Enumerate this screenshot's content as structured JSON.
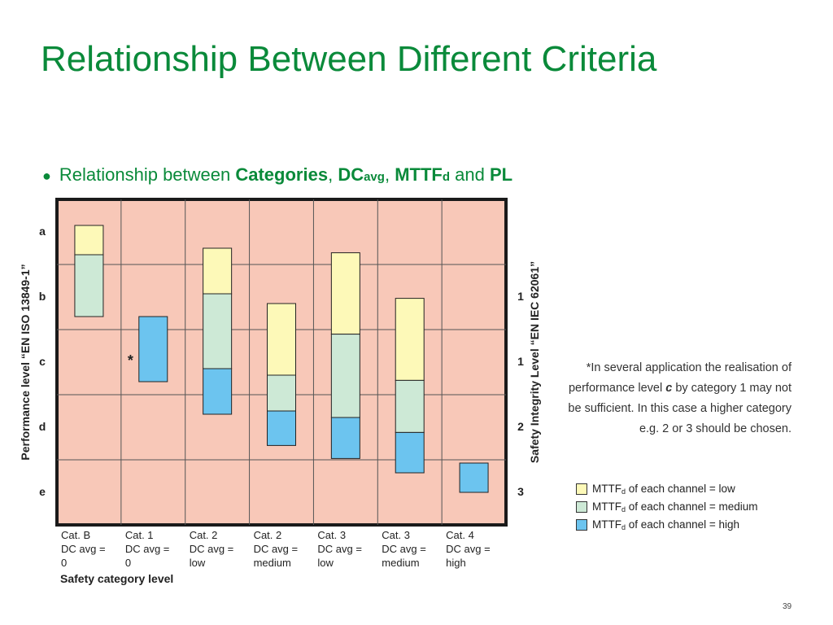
{
  "slide": {
    "title": "Relationship Between Different Criteria",
    "page_number": "39"
  },
  "bullet": {
    "marker": "●",
    "prefix": "Relationship between ",
    "categories": "Categories",
    "sep1": ", ",
    "dc": "DC",
    "dc_sub": "avg",
    "sep2": ", ",
    "mttf": "MTTF",
    "mttf_sub": "d",
    "and": " and ",
    "pl": "PL"
  },
  "note": {
    "before": "*In several application the realisation of performance level ",
    "emph": "c",
    "after": " by category 1 may not be sufficient. In this case a higher category e.g. 2 or 3 should be chosen."
  },
  "legend": {
    "items": [
      {
        "label_pre": "MTTF",
        "label_sub": "d",
        "label_post": " of each channel = low",
        "color": "#fdf9b8"
      },
      {
        "label_pre": "MTTF",
        "label_sub": "d",
        "label_post": " of each channel = medium",
        "color": "#cde9d6"
      },
      {
        "label_pre": "MTTF",
        "label_sub": "d",
        "label_post": " of each channel = high",
        "color": "#6cc4ef"
      }
    ]
  },
  "chart_data": {
    "type": "bar",
    "background_color": "#f8c8b8",
    "ylabel_left": "Performance level “EN ISO 13849-1”",
    "ylabel_right": "Safety Integrity Level “EN IEC 62061”",
    "xlabel": "Safety category level",
    "pl_levels": [
      "a",
      "b",
      "c",
      "d",
      "e"
    ],
    "sil_labels": [
      "1",
      "1",
      "2",
      "3"
    ],
    "categories": [
      {
        "lines": [
          "Cat. B",
          "DC avg =",
          "0"
        ]
      },
      {
        "lines": [
          "Cat. 1",
          "DC avg =",
          "0"
        ]
      },
      {
        "lines": [
          "Cat. 2",
          "DC avg =",
          "low"
        ]
      },
      {
        "lines": [
          "Cat. 2",
          "DC avg =",
          "medium"
        ]
      },
      {
        "lines": [
          "Cat. 3",
          "DC avg =",
          "low"
        ]
      },
      {
        "lines": [
          "Cat. 3",
          "DC avg =",
          "medium"
        ]
      },
      {
        "lines": [
          "Cat. 4",
          "DC avg =",
          "high"
        ]
      }
    ],
    "asterisk": "*",
    "asterisk_category": 1,
    "level_scale_note": "Segment bounds in PL units: 0 = top of level a, 1 = boundary a/b, 2 = b/c, 3 = c/d, 4 = d/e, 5 = bottom of e",
    "series_colors": {
      "low": "#fdf9b8",
      "medium": "#cde9d6",
      "high": "#6cc4ef"
    },
    "bars": [
      {
        "category": 0,
        "segments": [
          {
            "mttf": "low",
            "from": 0.4,
            "to": 0.85
          },
          {
            "mttf": "medium",
            "from": 0.85,
            "to": 1.8
          }
        ]
      },
      {
        "category": 1,
        "segments": [
          {
            "mttf": "high",
            "from": 1.8,
            "to": 2.8
          }
        ]
      },
      {
        "category": 2,
        "segments": [
          {
            "mttf": "low",
            "from": 0.75,
            "to": 1.45
          },
          {
            "mttf": "medium",
            "from": 1.45,
            "to": 2.6
          },
          {
            "mttf": "high",
            "from": 2.6,
            "to": 3.3
          }
        ]
      },
      {
        "category": 3,
        "segments": [
          {
            "mttf": "low",
            "from": 1.6,
            "to": 2.7
          },
          {
            "mttf": "medium",
            "from": 2.7,
            "to": 3.25
          },
          {
            "mttf": "high",
            "from": 3.25,
            "to": 3.78
          }
        ]
      },
      {
        "category": 4,
        "segments": [
          {
            "mttf": "low",
            "from": 0.82,
            "to": 2.07
          },
          {
            "mttf": "medium",
            "from": 2.07,
            "to": 3.35
          },
          {
            "mttf": "high",
            "from": 3.35,
            "to": 3.98
          }
        ]
      },
      {
        "category": 5,
        "segments": [
          {
            "mttf": "low",
            "from": 1.52,
            "to": 2.78
          },
          {
            "mttf": "medium",
            "from": 2.78,
            "to": 3.58
          },
          {
            "mttf": "high",
            "from": 3.58,
            "to": 4.2
          }
        ]
      },
      {
        "category": 6,
        "segments": [
          {
            "mttf": "high",
            "from": 4.05,
            "to": 4.5
          }
        ]
      }
    ]
  }
}
